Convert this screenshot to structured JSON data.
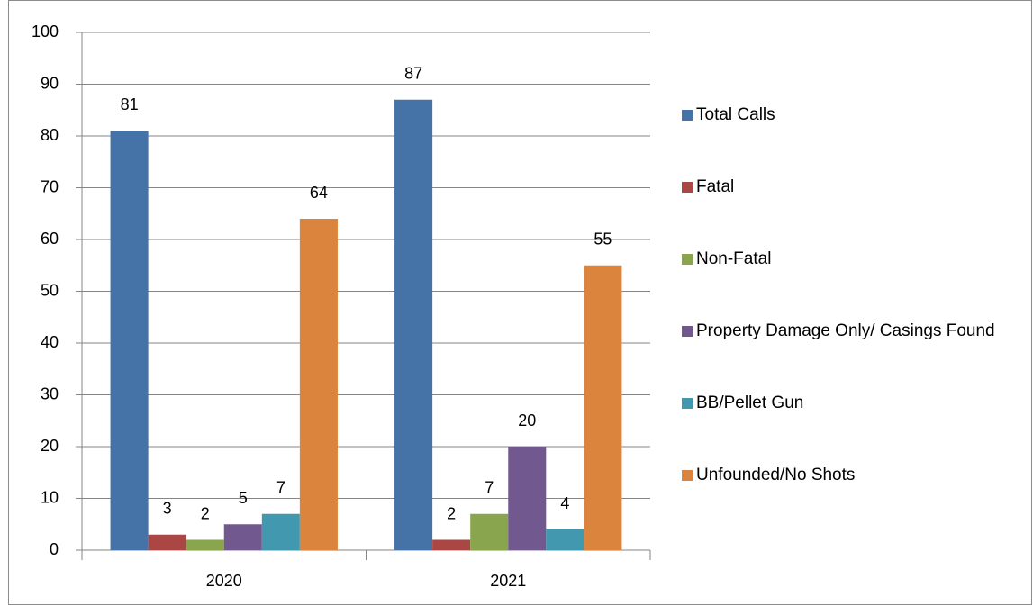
{
  "chart_data": {
    "type": "bar",
    "categories": [
      "2020",
      "2021"
    ],
    "series": [
      {
        "name": "Total Calls",
        "color": "#4572a7",
        "values": [
          81,
          87
        ]
      },
      {
        "name": "Fatal",
        "color": "#aa4643",
        "values": [
          3,
          2
        ]
      },
      {
        "name": "Non-Fatal",
        "color": "#89a54e",
        "values": [
          2,
          7
        ]
      },
      {
        "name": "Property Damage Only/ Casings Found",
        "color": "#71588f",
        "values": [
          5,
          20
        ]
      },
      {
        "name": "BB/Pellet Gun",
        "color": "#4198af",
        "values": [
          7,
          4
        ]
      },
      {
        "name": "Unfounded/No Shots",
        "color": "#db843d",
        "values": [
          64,
          55
        ]
      }
    ],
    "ylim": [
      0,
      100
    ],
    "yticks": [
      0,
      10,
      20,
      30,
      40,
      50,
      60,
      70,
      80,
      90,
      100
    ],
    "grid": true,
    "legend": "right"
  }
}
